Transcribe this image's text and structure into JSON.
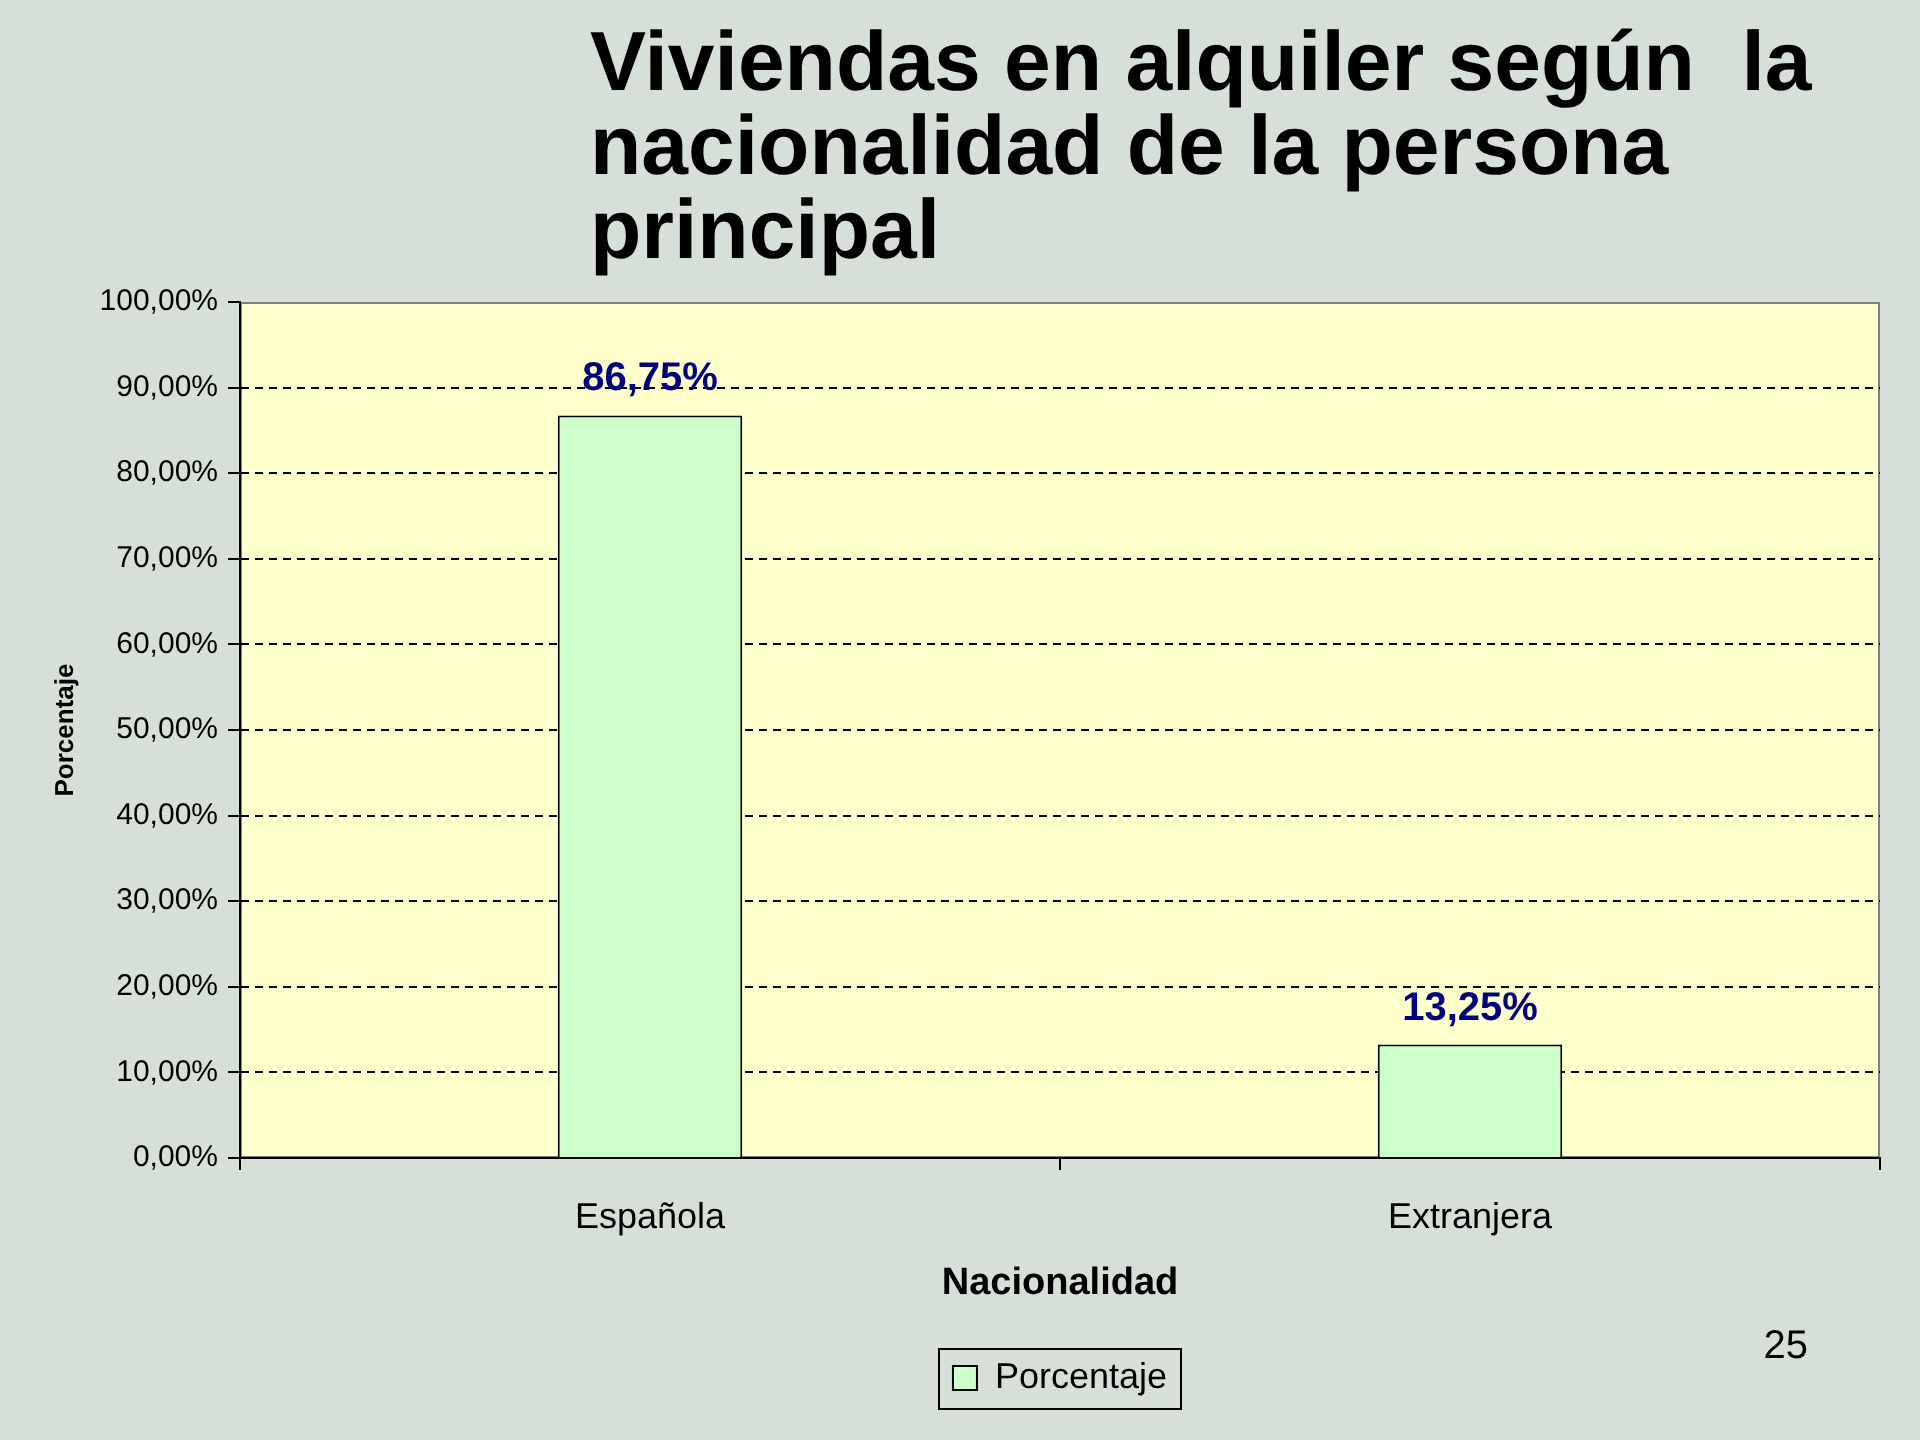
{
  "chart_data": {
    "type": "bar",
    "title": "Viviendas en alquiler según  la nacionalidad de la persona principal",
    "xlabel": "Nacionalidad",
    "ylabel": "Porcentaje",
    "categories": [
      "Española",
      "Extranjera"
    ],
    "series": [
      {
        "name": "Porcentaje",
        "color": "#ccffcc",
        "values": [
          86.75,
          13.25
        ],
        "value_labels": [
          "86,75%",
          "13,25%"
        ]
      }
    ],
    "ylim": [
      0,
      100
    ],
    "yticks": [
      {
        "value": 0,
        "label": "0,00%"
      },
      {
        "value": 10,
        "label": "10,00%"
      },
      {
        "value": 20,
        "label": "20,00%"
      },
      {
        "value": 30,
        "label": "30,00%"
      },
      {
        "value": 40,
        "label": "40,00%"
      },
      {
        "value": 50,
        "label": "50,00%"
      },
      {
        "value": 60,
        "label": "60,00%"
      },
      {
        "value": 70,
        "label": "70,00%"
      },
      {
        "value": 80,
        "label": "80,00%"
      },
      {
        "value": 90,
        "label": "90,00%"
      },
      {
        "value": 100,
        "label": "100,00%"
      }
    ],
    "grid": "y",
    "legend": "bottom",
    "annotations": [
      "25"
    ]
  }
}
